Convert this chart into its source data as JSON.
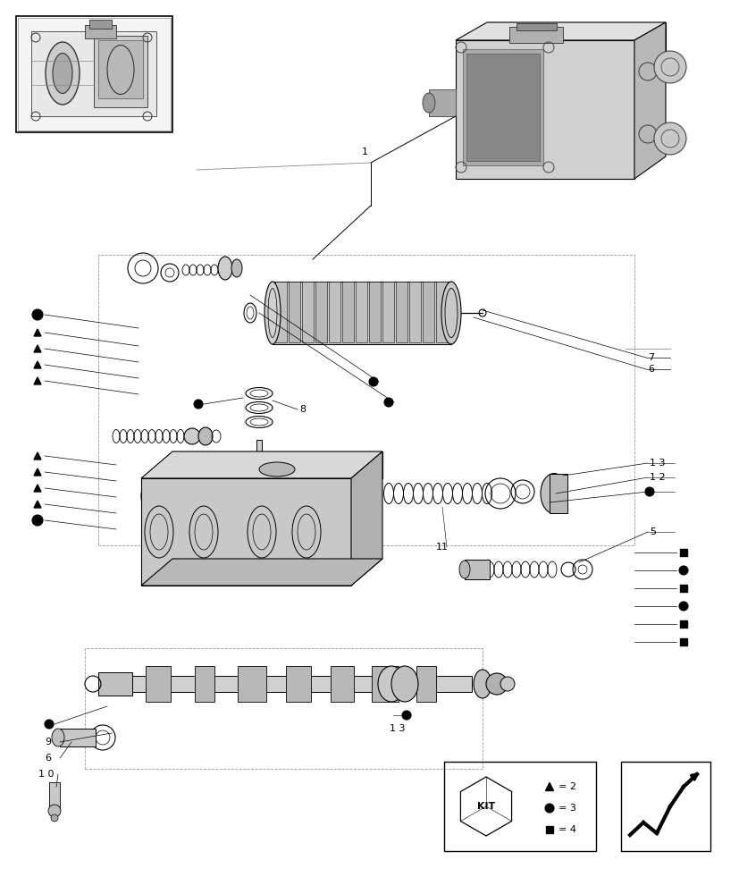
{
  "title": "",
  "bg_color": "#ffffff",
  "line_color": "#000000",
  "light_line_color": "#aaaaaa",
  "figure_size": [
    8.28,
    10.0
  ],
  "dpi": 100,
  "kit_legend": {
    "triangle_label": "= 2",
    "circle_label": "= 3",
    "square_label": "= 4"
  }
}
